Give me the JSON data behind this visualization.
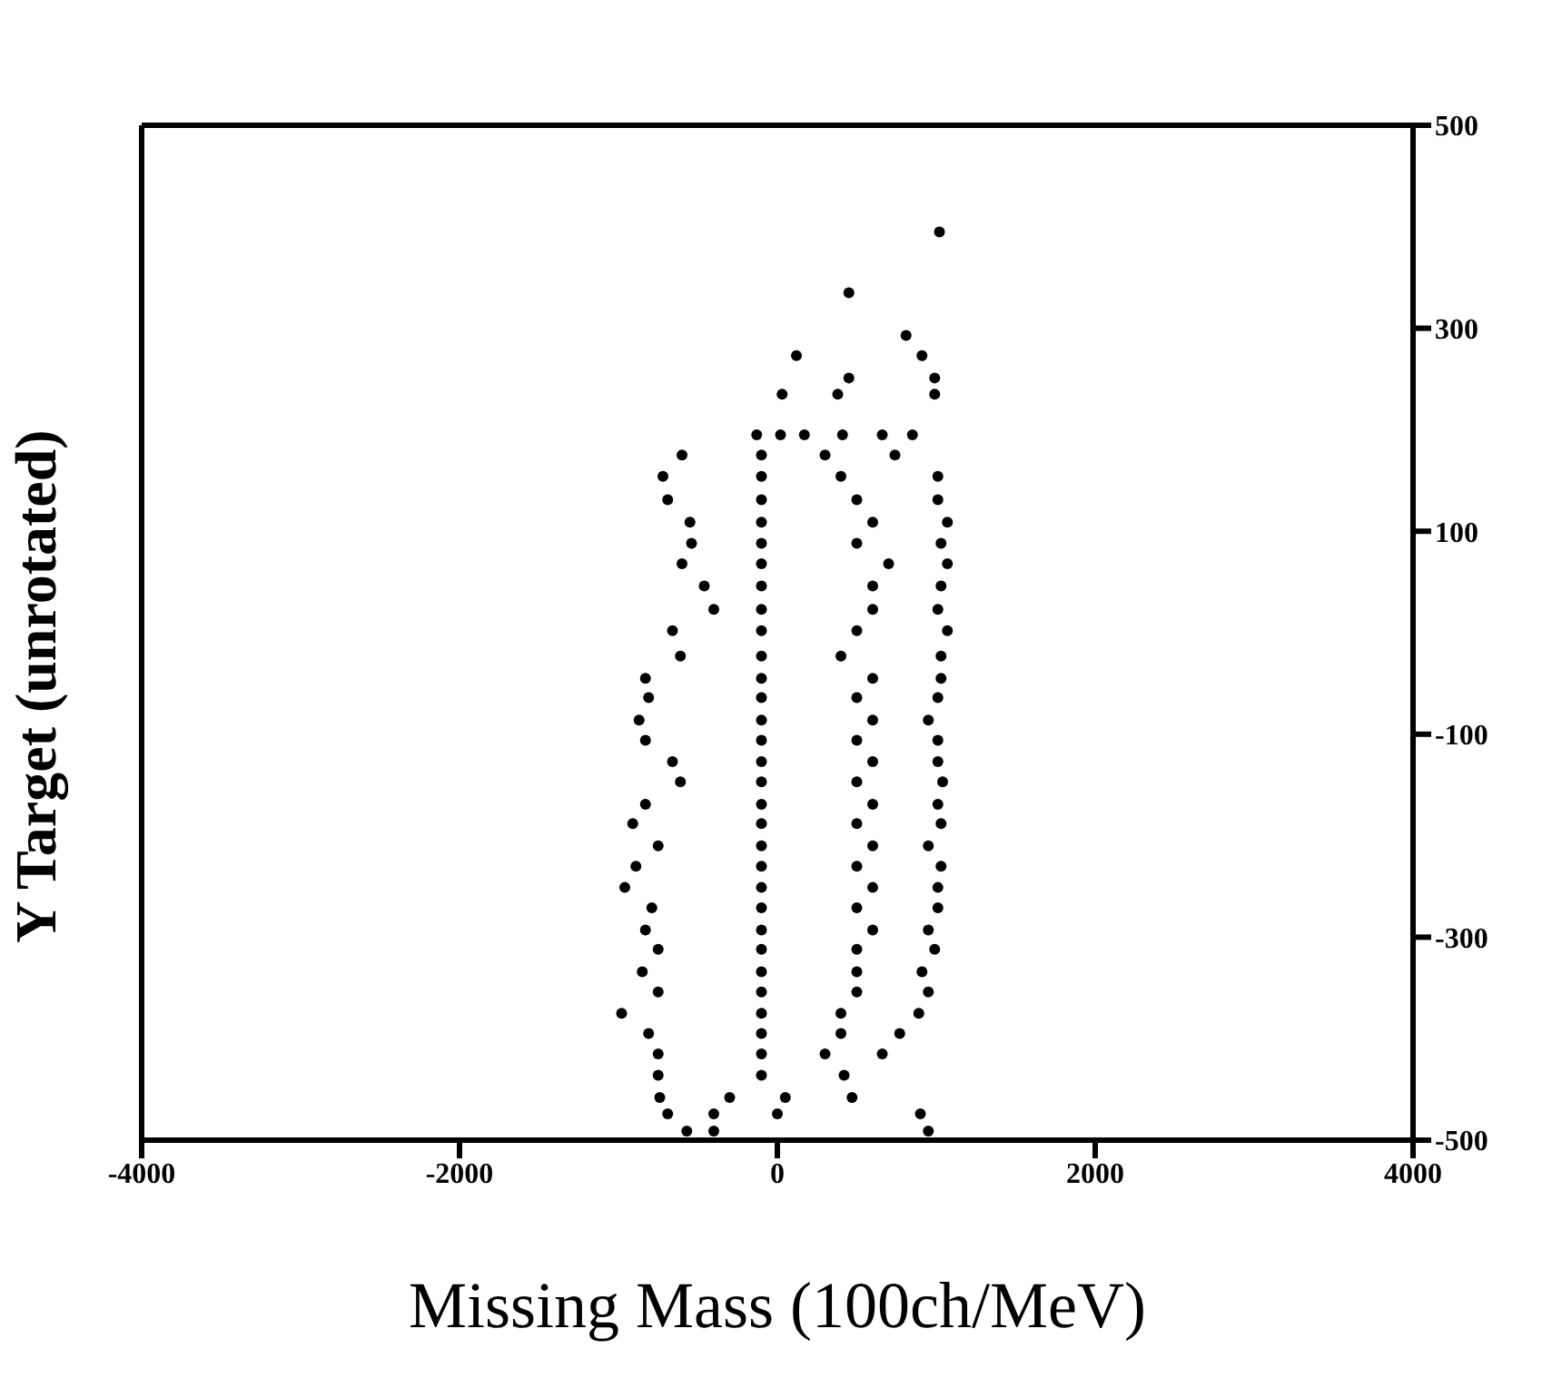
{
  "chart_data": {
    "type": "scatter",
    "xlabel": "Missing Mass (100ch/MeV)",
    "ylabel": "Y Target (unrotated)",
    "xlim": [
      -4000,
      4000
    ],
    "xticks": [
      -4000,
      -2000,
      0,
      2000,
      4000
    ],
    "ylim": [
      -500,
      500
    ],
    "yticks": [
      -500,
      -300,
      -100,
      100,
      300,
      500
    ],
    "marker": "circle",
    "grid": false,
    "series": [
      {
        "color": "#000000",
        "x": [
          1020,
          450,
          810,
          120,
          910,
          450,
          990,
          30,
          380,
          990,
          -130,
          20,
          170,
          410,
          660,
          850,
          -600,
          -100,
          300,
          740,
          -720,
          -100,
          400,
          1010,
          -690,
          -100,
          500,
          1010,
          -550,
          -100,
          600,
          1070,
          -540,
          -100,
          500,
          1030,
          -600,
          -100,
          700,
          1070,
          -460,
          -100,
          600,
          1030,
          -400,
          -100,
          600,
          1010,
          -660,
          -100,
          500,
          1070,
          -610,
          -100,
          400,
          1030,
          -830,
          -100,
          600,
          1030,
          -810,
          -100,
          500,
          1010,
          -870,
          -100,
          600,
          950,
          -830,
          -100,
          500,
          1010,
          -660,
          -100,
          600,
          1010,
          -610,
          -100,
          500,
          1040,
          -830,
          -100,
          600,
          1010,
          -910,
          -100,
          500,
          1030,
          -750,
          -100,
          600,
          950,
          -890,
          -100,
          500,
          1030,
          -960,
          -100,
          600,
          1010,
          -790,
          -100,
          500,
          1010,
          -830,
          -100,
          600,
          950,
          -750,
          -100,
          500,
          990,
          -850,
          -100,
          500,
          910,
          -750,
          -100,
          500,
          950,
          -980,
          -100,
          400,
          890,
          -810,
          -100,
          400,
          770,
          -750,
          -100,
          300,
          660,
          -750,
          -100,
          420,
          -740,
          -300,
          50,
          470,
          -690,
          -400,
          0,
          900,
          -570,
          -400,
          950
        ],
        "values": [
          395,
          335,
          293,
          273,
          273,
          251,
          251,
          235,
          235,
          235,
          195,
          195,
          195,
          195,
          195,
          195,
          175,
          175,
          175,
          175,
          154,
          154,
          154,
          154,
          131,
          131,
          131,
          131,
          109,
          109,
          109,
          109,
          88,
          88,
          88,
          88,
          68,
          68,
          68,
          68,
          46,
          46,
          46,
          46,
          23,
          23,
          23,
          23,
          2,
          2,
          2,
          2,
          -23,
          -23,
          -23,
          -23,
          -45,
          -45,
          -45,
          -45,
          -64,
          -64,
          -64,
          -64,
          -86,
          -86,
          -86,
          -86,
          -106,
          -106,
          -106,
          -106,
          -127,
          -127,
          -127,
          -127,
          -147,
          -147,
          -147,
          -147,
          -169,
          -169,
          -169,
          -169,
          -188,
          -188,
          -188,
          -188,
          -210,
          -210,
          -210,
          -210,
          -230,
          -230,
          -230,
          -230,
          -251,
          -251,
          -251,
          -251,
          -271,
          -271,
          -271,
          -271,
          -293,
          -293,
          -293,
          -293,
          -312,
          -312,
          -312,
          -312,
          -334,
          -334,
          -334,
          -334,
          -354,
          -354,
          -354,
          -354,
          -375,
          -375,
          -375,
          -375,
          -395,
          -395,
          -395,
          -395,
          -415,
          -415,
          -415,
          -415,
          -436,
          -436,
          -436,
          -458,
          -458,
          -458,
          -458,
          -474,
          -474,
          -474,
          -474,
          -491,
          -491,
          -491
        ]
      }
    ]
  }
}
